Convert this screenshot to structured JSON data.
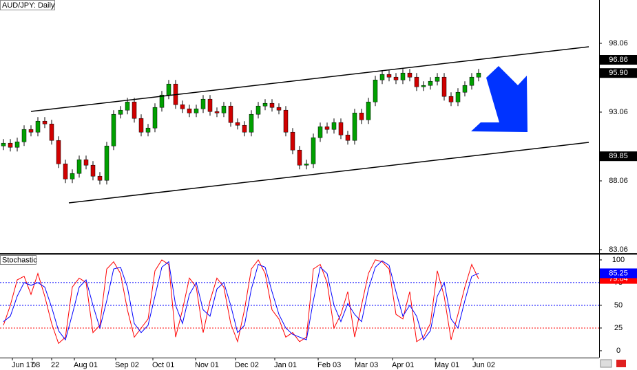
{
  "chart_data": [
    {
      "type": "candlestick",
      "title": "AUD/JPY: Daily",
      "open": [
        90.6,
        90.8,
        90.5,
        90.9,
        91.8,
        91.6,
        92.4,
        92.2,
        91.0,
        89.3,
        88.2,
        88.6,
        89.6,
        89.2,
        88.4,
        88.1,
        90.6,
        92.9,
        93.2,
        93.8,
        92.6,
        91.6,
        91.9,
        93.4,
        94.3,
        95.1,
        93.6,
        93.3,
        93.0,
        93.3,
        94.0,
        93.1,
        93.0,
        93.5,
        92.3,
        92.1,
        91.6,
        92.9,
        93.5,
        93.7,
        93.4,
        93.2,
        91.6,
        90.3,
        89.2,
        89.3,
        91.2,
        92.0,
        91.8,
        92.3,
        91.4,
        91.0,
        93.0,
        92.5,
        93.8,
        95.4,
        95.8,
        95.6,
        95.4,
        95.9,
        95.6,
        94.9,
        95.0,
        95.3,
        95.6,
        94.2,
        93.8,
        94.5,
        95.0,
        95.6
      ],
      "high": [
        91.1,
        91.1,
        91.2,
        92.1,
        92.1,
        92.7,
        92.7,
        92.5,
        91.3,
        89.6,
        88.9,
        89.9,
        89.9,
        89.5,
        88.7,
        90.9,
        93.2,
        93.5,
        94.1,
        94.1,
        92.9,
        92.2,
        93.7,
        94.6,
        95.4,
        95.4,
        93.9,
        93.6,
        93.6,
        94.3,
        94.3,
        93.4,
        93.8,
        93.8,
        92.6,
        92.4,
        93.2,
        93.8,
        94.0,
        94.0,
        93.7,
        93.5,
        91.9,
        90.6,
        89.6,
        91.5,
        92.3,
        92.3,
        92.6,
        92.6,
        91.7,
        93.3,
        93.3,
        94.1,
        95.7,
        96.1,
        96.1,
        95.9,
        96.2,
        96.2,
        95.9,
        95.3,
        95.6,
        95.9,
        95.9,
        94.5,
        94.8,
        95.3,
        95.9,
        96.2
      ],
      "low": [
        90.3,
        90.2,
        90.2,
        90.6,
        91.3,
        91.3,
        91.9,
        90.7,
        89.0,
        87.9,
        87.9,
        88.3,
        88.9,
        88.1,
        87.8,
        87.8,
        90.3,
        92.6,
        92.9,
        92.3,
        91.3,
        91.3,
        91.6,
        93.1,
        94.0,
        93.3,
        93.0,
        92.7,
        92.7,
        93.0,
        92.8,
        92.7,
        92.7,
        92.0,
        91.8,
        91.3,
        91.3,
        92.6,
        93.2,
        93.1,
        92.9,
        91.3,
        90.0,
        88.9,
        88.9,
        89.0,
        90.9,
        91.5,
        91.5,
        91.1,
        90.7,
        90.7,
        92.2,
        92.2,
        93.5,
        95.1,
        95.3,
        95.1,
        95.1,
        95.3,
        94.6,
        94.6,
        94.7,
        95.0,
        93.9,
        93.5,
        93.5,
        94.2,
        94.7,
        95.3
      ],
      "close": [
        90.8,
        90.5,
        90.9,
        91.8,
        91.6,
        92.4,
        92.2,
        91.0,
        89.3,
        88.2,
        88.6,
        89.6,
        89.2,
        88.4,
        88.1,
        90.6,
        92.9,
        93.2,
        93.8,
        92.6,
        91.6,
        91.9,
        93.4,
        94.3,
        95.1,
        93.6,
        93.3,
        93.0,
        93.3,
        94.0,
        93.1,
        93.0,
        93.5,
        92.3,
        92.1,
        91.6,
        92.9,
        93.5,
        93.7,
        93.4,
        93.2,
        91.6,
        90.3,
        89.2,
        89.3,
        91.2,
        92.0,
        91.8,
        92.3,
        91.4,
        91.0,
        93.0,
        92.5,
        93.8,
        95.4,
        95.8,
        95.6,
        95.4,
        95.9,
        95.6,
        94.9,
        95.0,
        95.3,
        95.6,
        94.2,
        93.8,
        94.5,
        95.0,
        95.6,
        95.9
      ],
      "up_color": "#00a000",
      "down_color": "#d00000",
      "xlim": [
        -0.5,
        86.5
      ],
      "ylim": [
        82.81,
        101.21
      ],
      "yticks": [
        83.06,
        88.06,
        93.06,
        98.06
      ],
      "trendlines": [
        {
          "x": [
            4,
            85
          ],
          "y": [
            93.11,
            97.81
          ]
        },
        {
          "x": [
            9.5,
            85
          ],
          "y": [
            86.46,
            90.86
          ]
        }
      ],
      "price_labels": [
        96.86,
        {
          "value": 95.9,
          "label": "95.90"
        },
        89.85
      ]
    },
    {
      "type": "line",
      "title": "Stochastic",
      "series": [
        {
          "color": "#ff0000",
          "values": [
            28,
            50,
            78,
            82,
            62,
            85,
            60,
            30,
            8,
            15,
            70,
            80,
            75,
            20,
            28,
            90,
            98,
            85,
            45,
            15,
            25,
            35,
            88,
            100,
            95,
            15,
            45,
            80,
            70,
            20,
            55,
            80,
            70,
            30,
            10,
            45,
            90,
            100,
            85,
            45,
            35,
            15,
            20,
            10,
            15,
            90,
            95,
            75,
            25,
            40,
            65,
            15,
            50,
            85,
            100,
            98,
            90,
            40,
            35,
            65,
            10,
            15,
            30,
            88,
            60,
            12,
            40,
            70,
            95,
            79.04
          ]
        },
        {
          "color": "#0000ff",
          "values": [
            32,
            38,
            60,
            75,
            72,
            75,
            70,
            48,
            22,
            12,
            40,
            70,
            78,
            50,
            25,
            55,
            90,
            92,
            70,
            30,
            20,
            28,
            60,
            92,
            98,
            50,
            30,
            62,
            75,
            45,
            38,
            68,
            75,
            50,
            20,
            28,
            68,
            95,
            92,
            65,
            40,
            25,
            18,
            15,
            12,
            55,
            92,
            85,
            50,
            32,
            52,
            40,
            32,
            68,
            92,
            99,
            94,
            65,
            38,
            50,
            38,
            12,
            22,
            60,
            75,
            35,
            25,
            55,
            82,
            85.25
          ]
        }
      ],
      "levels": [
        {
          "value": 75,
          "color": "#0000ff"
        },
        {
          "value": 50,
          "color": "#0000ff"
        },
        {
          "value": 25,
          "color": "#ff0000"
        }
      ],
      "xlim": [
        -0.5,
        86.5
      ],
      "xticks": [
        {
          "value": 1.3,
          "label": "Jun 17"
        },
        {
          "value": 4.2,
          "label": "08"
        },
        {
          "value": 7,
          "label": "22"
        },
        {
          "value": 10.3,
          "label": "Aug 01"
        },
        {
          "value": 16.3,
          "label": "Sep 02"
        },
        {
          "value": 21.7,
          "label": "Oct 01"
        },
        {
          "value": 27.9,
          "label": "Nov 01"
        },
        {
          "value": 33.7,
          "label": "Dec 02"
        },
        {
          "value": 39.4,
          "label": "Jan 01"
        },
        {
          "value": 45.7,
          "label": "Feb 03"
        },
        {
          "value": 51.1,
          "label": "Mar 03"
        },
        {
          "value": 56.5,
          "label": "Apr 01"
        },
        {
          "value": 62.7,
          "label": "May 01"
        },
        {
          "value": 68.2,
          "label": "Jun 02"
        }
      ],
      "ylim": [
        -7.6,
        106
      ],
      "yticks": [
        0,
        25,
        50,
        75,
        100
      ]
    }
  ]
}
